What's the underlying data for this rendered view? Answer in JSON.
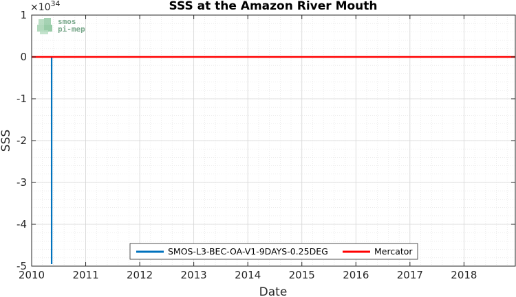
{
  "chart_data": {
    "type": "line",
    "title": "SSS at the Amazon River Mouth",
    "xlabel": "Date",
    "ylabel": "SSS",
    "exponent_base": "×10",
    "exponent_power": "34",
    "x_ticks": [
      "2010",
      "2011",
      "2012",
      "2013",
      "2014",
      "2015",
      "2016",
      "2017",
      "2018"
    ],
    "y_ticks": [
      "1",
      "0",
      "-1",
      "-2",
      "-3",
      "-4",
      "-5"
    ],
    "xlim": [
      2010,
      2018.95
    ],
    "ylim": [
      -5,
      1
    ],
    "grid": true,
    "legend_placement": "bottom-center",
    "series": [
      {
        "name": "SMOS-L3-BEC-OA-V1-9DAYS-0.25DEG",
        "color": "#0072bd",
        "x": [
          2010.37,
          2010.37
        ],
        "y": [
          0,
          -4.95
        ]
      },
      {
        "name": "Mercator",
        "color": "#ff0000",
        "x": [
          2010.0,
          2018.95
        ],
        "y": [
          0,
          0
        ]
      }
    ]
  },
  "logo": {
    "line1": "smos",
    "line2": "pi-mep"
  }
}
